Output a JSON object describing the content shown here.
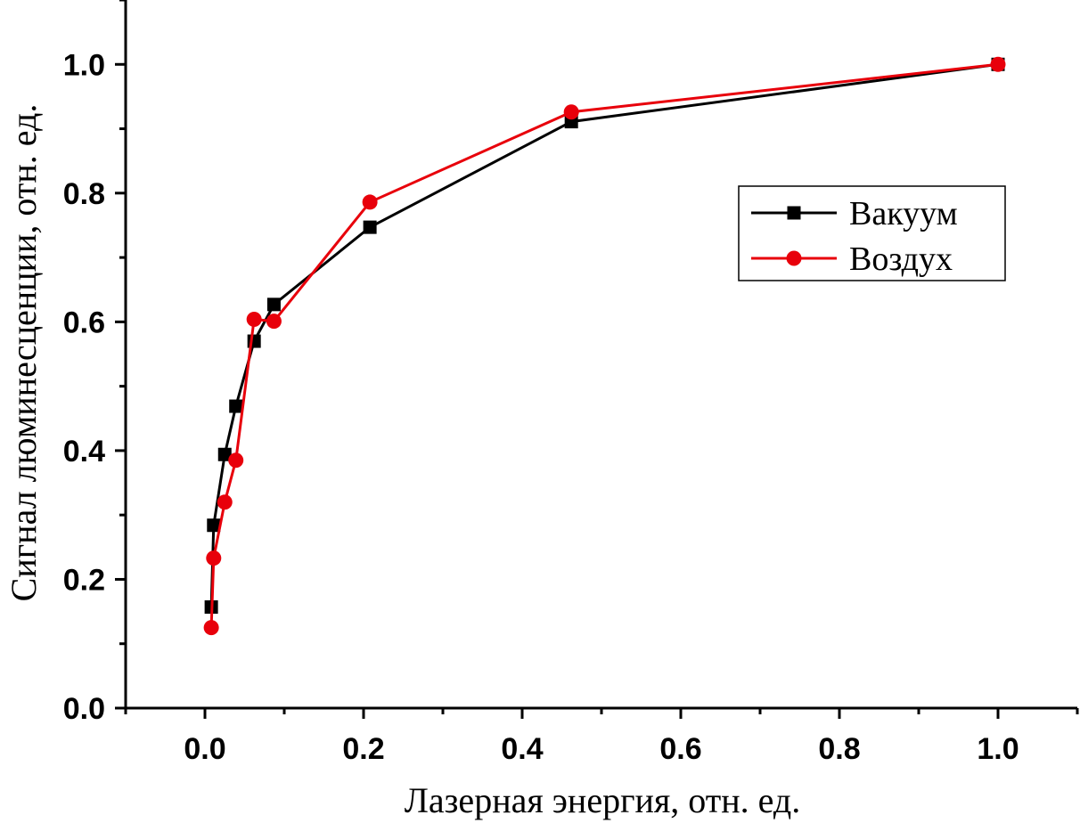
{
  "chart_data": {
    "type": "line",
    "title": "",
    "xlabel": "Лазерная энергия, отн. ед.",
    "ylabel": "Сигнал люминесценции, отн. ед.",
    "xlim": [
      -0.1,
      1.1
    ],
    "ylim": [
      0.0,
      1.1
    ],
    "x_ticks": [
      "0.0",
      "0.2",
      "0.4",
      "0.6",
      "0.8",
      "1.0"
    ],
    "y_ticks": [
      "0.0",
      "0.2",
      "0.4",
      "0.6",
      "0.8",
      "1.0"
    ],
    "grid": false,
    "legend_position": "right",
    "series": [
      {
        "name": "Вакуум",
        "color": "#000000",
        "marker": "square",
        "x": [
          0.008,
          0.011,
          0.025,
          0.039,
          0.062,
          0.087,
          0.208,
          0.462,
          1.0
        ],
        "y": [
          0.157,
          0.284,
          0.394,
          0.469,
          0.57,
          0.627,
          0.747,
          0.911,
          1.0
        ]
      },
      {
        "name": "Воздух",
        "color": "#e8000b",
        "marker": "circle",
        "x": [
          0.008,
          0.011,
          0.025,
          0.039,
          0.062,
          0.087,
          0.208,
          0.462,
          1.0
        ],
        "y": [
          0.125,
          0.233,
          0.32,
          0.385,
          0.604,
          0.601,
          0.786,
          0.926,
          1.0
        ]
      }
    ]
  }
}
